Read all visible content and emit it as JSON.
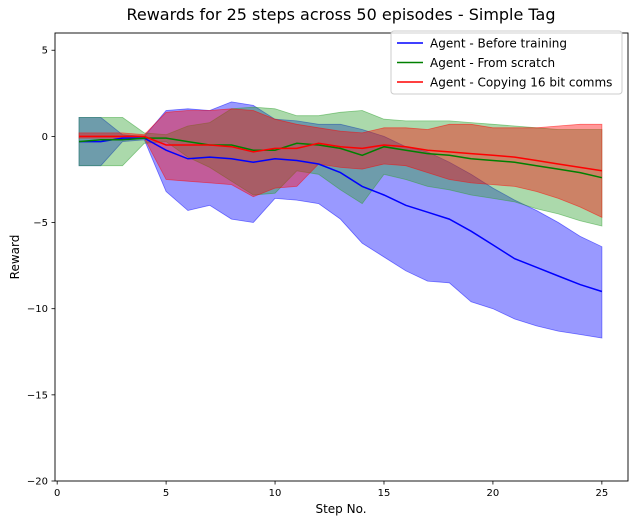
{
  "chart_data": {
    "type": "line",
    "title": "Rewards for 25 steps across 50 episodes - Simple Tag",
    "xlabel": "Step No.",
    "ylabel": "Reward",
    "xlim": [
      -0.1,
      26.2
    ],
    "ylim": [
      -20,
      6
    ],
    "xticks": [
      0,
      5,
      10,
      15,
      20,
      25
    ],
    "yticks": [
      -20,
      -15,
      -10,
      -5,
      0,
      5
    ],
    "legend_position": "top-right",
    "grid": false,
    "x": [
      1,
      2,
      3,
      4,
      5,
      6,
      7,
      8,
      9,
      10,
      11,
      12,
      13,
      14,
      15,
      16,
      17,
      18,
      19,
      20,
      21,
      22,
      23,
      24,
      25
    ],
    "series": [
      {
        "name": "Agent - Before training",
        "color": "#0000ff",
        "fill": "#0000ff",
        "values": [
          -0.3,
          -0.3,
          -0.1,
          -0.1,
          -0.8,
          -1.3,
          -1.2,
          -1.3,
          -1.5,
          -1.3,
          -1.4,
          -1.6,
          -2.1,
          -2.9,
          -3.4,
          -4.0,
          -4.4,
          -4.8,
          -5.5,
          -6.3,
          -7.1,
          -7.6,
          -8.1,
          -8.6,
          -9.0
        ],
        "upper": [
          1.1,
          1.1,
          0.1,
          0.0,
          1.5,
          1.6,
          1.5,
          2.0,
          1.8,
          1.0,
          0.9,
          0.7,
          0.7,
          0.4,
          0.0,
          -0.6,
          -0.9,
          -1.5,
          -2.2,
          -3.0,
          -3.7,
          -4.3,
          -5.0,
          -5.8,
          -6.4
        ],
        "lower": [
          -1.7,
          -1.7,
          -0.3,
          -0.2,
          -3.2,
          -4.3,
          -4.0,
          -4.8,
          -5.0,
          -3.6,
          -3.7,
          -3.9,
          -4.8,
          -6.2,
          -7.0,
          -7.8,
          -8.4,
          -8.5,
          -9.6,
          -10.0,
          -10.6,
          -11.0,
          -11.3,
          -11.5,
          -11.7
        ]
      },
      {
        "name": "Agent - From scratch",
        "color": "#008000",
        "fill": "#2ca02c",
        "values": [
          -0.3,
          -0.2,
          -0.2,
          -0.1,
          -0.1,
          -0.3,
          -0.5,
          -0.5,
          -0.8,
          -0.8,
          -0.4,
          -0.5,
          -0.7,
          -1.1,
          -0.6,
          -0.8,
          -1.0,
          -1.1,
          -1.3,
          -1.4,
          -1.5,
          -1.7,
          -1.9,
          -2.1,
          -2.4
        ],
        "upper": [
          1.1,
          1.1,
          1.1,
          0.2,
          0.1,
          0.6,
          0.8,
          1.6,
          1.7,
          1.6,
          1.2,
          1.2,
          1.4,
          1.5,
          1.0,
          0.9,
          0.9,
          0.9,
          0.8,
          0.7,
          0.6,
          0.5,
          0.4,
          0.4,
          0.4
        ],
        "lower": [
          -1.7,
          -1.7,
          -1.7,
          -0.4,
          -0.3,
          -1.2,
          -1.8,
          -2.6,
          -3.4,
          -3.3,
          -2.0,
          -2.2,
          -3.1,
          -3.9,
          -2.2,
          -2.5,
          -2.9,
          -3.1,
          -3.4,
          -3.6,
          -3.8,
          -4.2,
          -4.5,
          -4.9,
          -5.2
        ]
      },
      {
        "name": "Agent - Copying 16 bit comms",
        "color": "#ff0000",
        "fill": "#ff0000",
        "values": [
          0.0,
          0.0,
          0.0,
          0.0,
          -0.5,
          -0.5,
          -0.5,
          -0.6,
          -0.9,
          -0.7,
          -0.7,
          -0.4,
          -0.6,
          -0.7,
          -0.5,
          -0.6,
          -0.8,
          -0.9,
          -1.0,
          -1.1,
          -1.2,
          -1.4,
          -1.6,
          -1.8,
          -2.0
        ],
        "upper": [
          0.2,
          0.2,
          0.2,
          0.1,
          1.4,
          1.5,
          1.5,
          1.6,
          1.5,
          1.0,
          0.7,
          0.5,
          0.3,
          0.2,
          0.5,
          0.5,
          0.4,
          0.7,
          0.7,
          0.5,
          0.5,
          0.5,
          0.6,
          0.7,
          0.7
        ],
        "lower": [
          -0.1,
          -0.1,
          -0.1,
          -0.1,
          -2.5,
          -2.6,
          -2.7,
          -2.8,
          -3.5,
          -3.0,
          -2.9,
          -1.6,
          -1.8,
          -1.9,
          -1.6,
          -1.7,
          -2.1,
          -2.5,
          -2.7,
          -2.8,
          -2.9,
          -3.2,
          -3.6,
          -4.1,
          -4.7
        ]
      }
    ]
  }
}
